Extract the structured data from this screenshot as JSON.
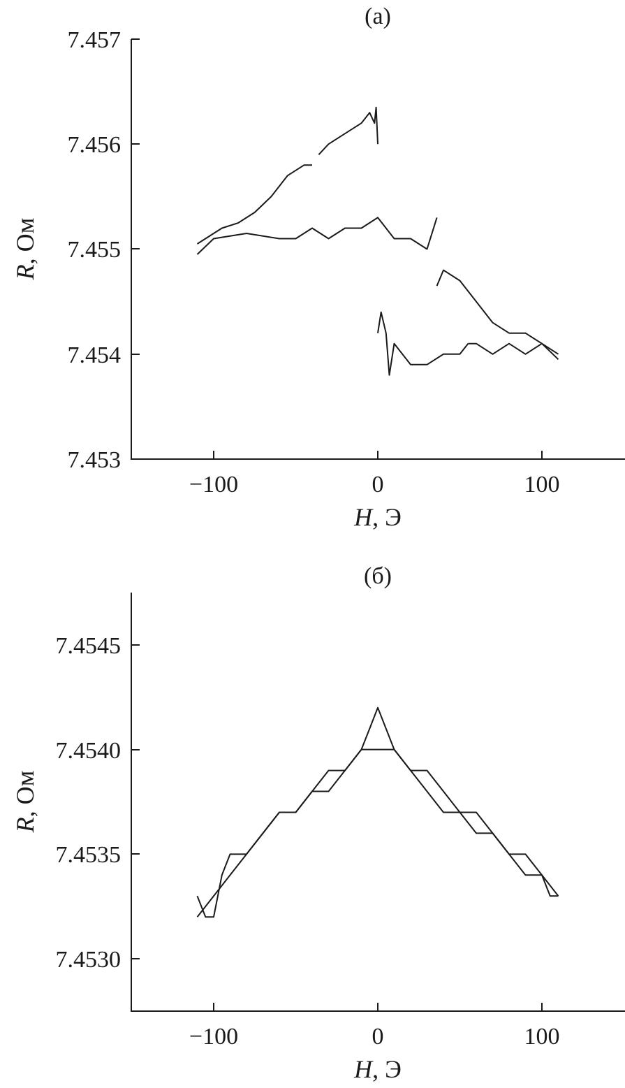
{
  "chart_data": [
    {
      "type": "line",
      "title": "(a)",
      "xlabel": {
        "symbol": "H",
        "unit": ", Э"
      },
      "ylabel": {
        "symbol": "R",
        "unit": ", Ом"
      },
      "xlim": [
        -150,
        150
      ],
      "ylim": [
        7.453,
        7.457
      ],
      "xticks": [
        -100,
        0,
        100
      ],
      "xtick_labels": [
        "−100",
        "0",
        "100"
      ],
      "yticks": [
        7.453,
        7.454,
        7.455,
        7.456,
        7.457
      ],
      "ytick_labels": [
        "7.453",
        "7.454",
        "7.455",
        "7.456",
        "7.457"
      ],
      "grid": false,
      "legend": "none",
      "series": [
        {
          "x": [
            -110,
            -95,
            -85,
            -75,
            -65,
            -55,
            -45,
            -40
          ],
          "y": [
            7.45505,
            7.4552,
            7.45525,
            7.45535,
            7.4555,
            7.4557,
            7.4558,
            7.4558
          ]
        },
        {
          "x": [
            -36,
            -30,
            -20,
            -10,
            -5,
            -2,
            -1,
            0
          ],
          "y": [
            7.4559,
            7.456,
            7.4561,
            7.4562,
            7.4563,
            7.4562,
            7.45635,
            7.456
          ]
        },
        {
          "x": [
            -110,
            -100,
            -80,
            -60,
            -50,
            -40,
            -30,
            -20,
            -10,
            0,
            10,
            20,
            30,
            36
          ],
          "y": [
            7.45495,
            7.4551,
            7.45515,
            7.4551,
            7.4551,
            7.4552,
            7.4551,
            7.4552,
            7.4552,
            7.4553,
            7.4551,
            7.4551,
            7.455,
            7.4553
          ]
        },
        {
          "x": [
            36,
            40,
            50,
            60,
            70,
            80,
            90,
            100,
            110
          ],
          "y": [
            7.45465,
            7.4548,
            7.4547,
            7.4545,
            7.4543,
            7.4542,
            7.4542,
            7.4541,
            7.45395
          ]
        },
        {
          "x": [
            0,
            2,
            5,
            7,
            10,
            20,
            30,
            40,
            50,
            55
          ],
          "y": [
            7.4542,
            7.4544,
            7.4542,
            7.4538,
            7.4541,
            7.4539,
            7.4539,
            7.454,
            7.454,
            7.4541
          ]
        },
        {
          "x": [
            55,
            60,
            70,
            80,
            90,
            100,
            110
          ],
          "y": [
            7.4541,
            7.4541,
            7.454,
            7.4541,
            7.454,
            7.4541,
            7.454
          ]
        }
      ]
    },
    {
      "type": "line",
      "title": "(б)",
      "xlabel": {
        "symbol": "H",
        "unit": ", Э"
      },
      "ylabel": {
        "symbol": "R",
        "unit": ", Ом"
      },
      "xlim": [
        -150,
        150
      ],
      "ylim": [
        7.45275,
        7.45475
      ],
      "xticks": [
        -100,
        0,
        100
      ],
      "xtick_labels": [
        "−100",
        "0",
        "100"
      ],
      "yticks": [
        7.453,
        7.4535,
        7.454,
        7.4545
      ],
      "ytick_labels": [
        "7.4530",
        "7.4535",
        "7.4540",
        "7.4545"
      ],
      "grid": false,
      "legend": "none",
      "series": [
        {
          "x": [
            -110,
            -105,
            -100,
            -95,
            -90,
            -80,
            -70,
            -60,
            -50,
            -40,
            -30,
            -20,
            -10,
            -5,
            0,
            5,
            10,
            20,
            30,
            40,
            50,
            60,
            70,
            80,
            90,
            100,
            105,
            110
          ],
          "y": [
            7.4533,
            7.4532,
            7.4532,
            7.4534,
            7.4535,
            7.4535,
            7.4536,
            7.4537,
            7.4537,
            7.4538,
            7.4538,
            7.4539,
            7.454,
            7.4541,
            7.4542,
            7.4541,
            7.454,
            7.4539,
            7.4538,
            7.4537,
            7.4537,
            7.4536,
            7.4536,
            7.4535,
            7.4534,
            7.4534,
            7.4533,
            7.4533
          ]
        },
        {
          "x": [
            -110,
            -100,
            -90,
            -80,
            -70,
            -60,
            -50,
            -40,
            -30,
            -20,
            -10,
            0,
            10,
            20,
            30,
            40,
            50,
            60,
            70,
            80,
            90,
            100,
            110
          ],
          "y": [
            7.4532,
            7.4533,
            7.4534,
            7.4535,
            7.4536,
            7.4537,
            7.4537,
            7.4538,
            7.4539,
            7.4539,
            7.454,
            7.454,
            7.454,
            7.4539,
            7.4539,
            7.4538,
            7.4537,
            7.4537,
            7.4536,
            7.4535,
            7.4535,
            7.4534,
            7.4533
          ]
        }
      ]
    }
  ]
}
